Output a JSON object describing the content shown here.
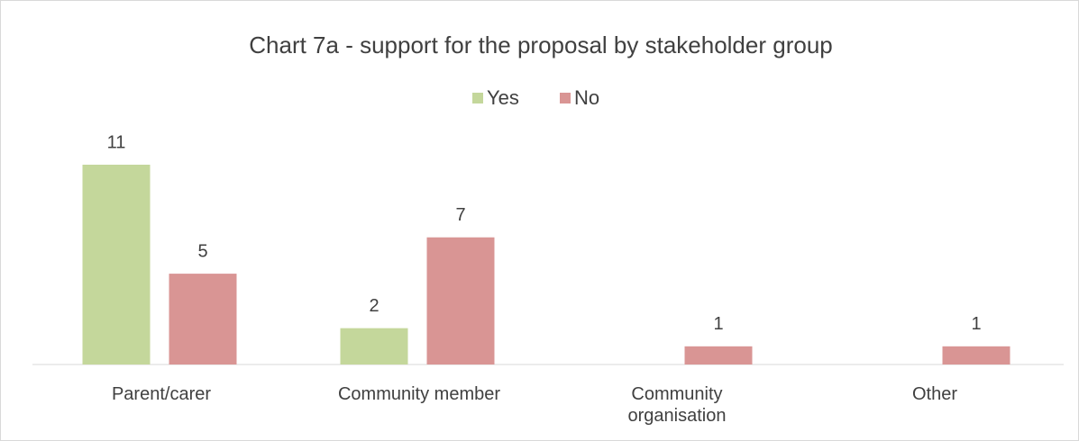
{
  "chart_data": {
    "type": "bar",
    "title": "Chart 7a - support for the proposal by stakeholder group",
    "categories": [
      "Parent/carer",
      "Community member",
      "Community organisation",
      "Other"
    ],
    "series": [
      {
        "name": "Yes",
        "color": "#c4d79b",
        "values": [
          11,
          2,
          null,
          null
        ]
      },
      {
        "name": "No",
        "color": "#d99594",
        "values": [
          5,
          7,
          1,
          1
        ]
      }
    ],
    "legend": "top"
  }
}
